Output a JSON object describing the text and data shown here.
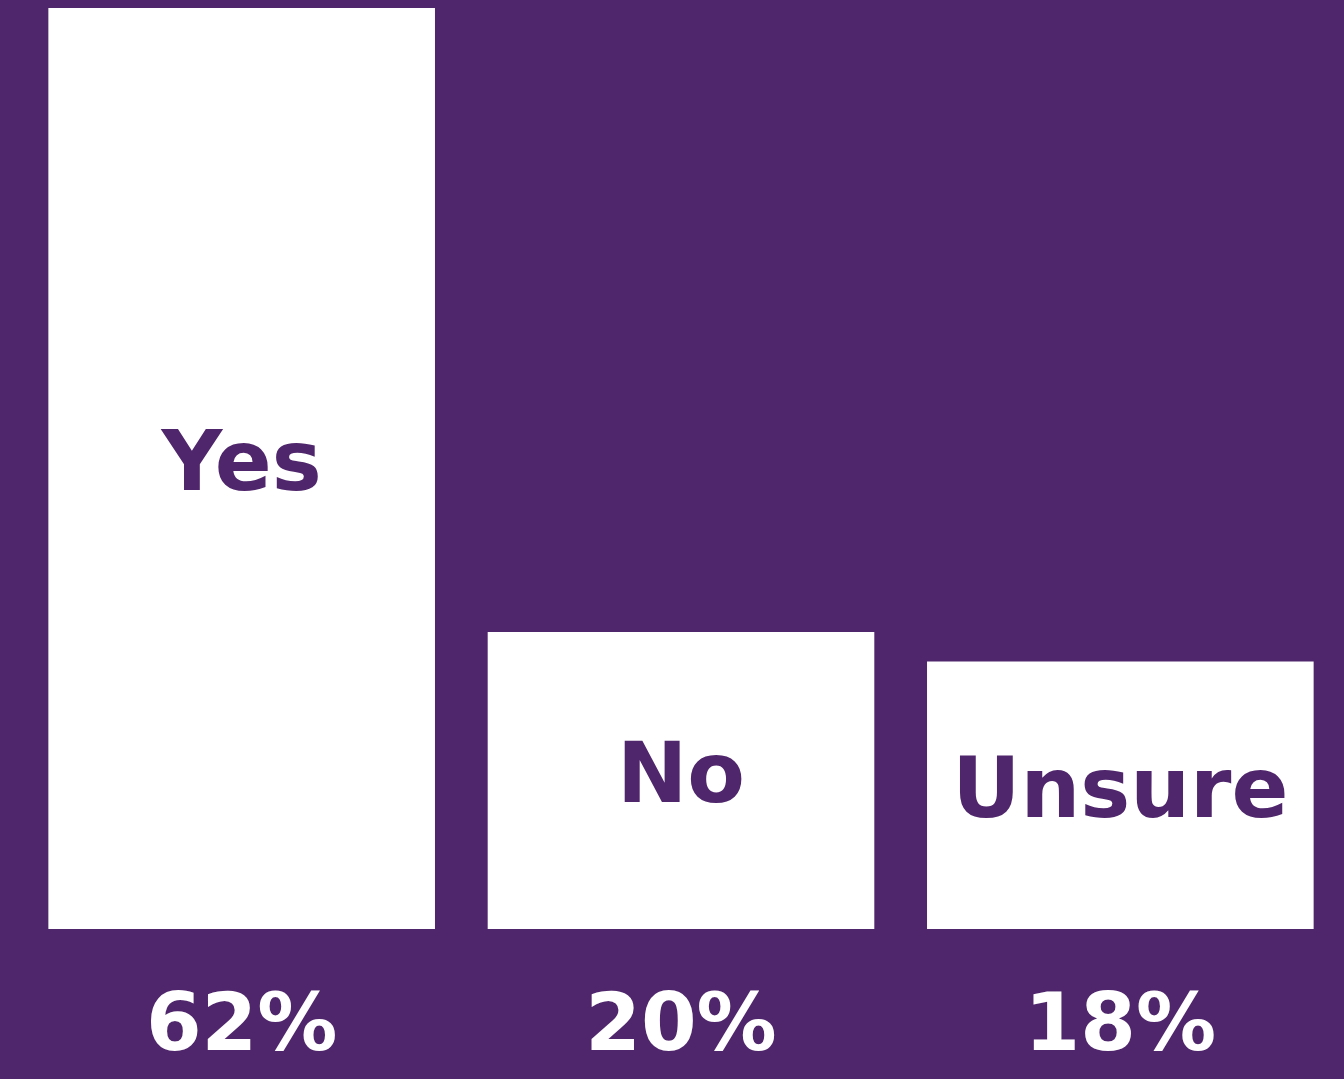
{
  "chart_data": {
    "type": "bar",
    "categories": [
      "Yes",
      "No",
      "Unsure"
    ],
    "values": [
      62,
      20,
      18
    ],
    "color": "#ffffff",
    "value_labels": [
      "62%",
      "20%",
      "18%"
    ]
  }
}
